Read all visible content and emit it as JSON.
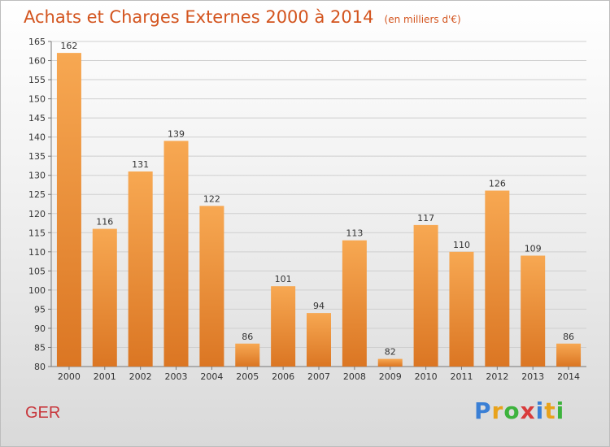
{
  "title": "Achats et Charges Externes 2000 à 2014",
  "unit": "(en milliers d'€)",
  "commune": "GER",
  "brand": {
    "letters": [
      "P",
      "r",
      "o",
      "x",
      "i",
      "t",
      "i"
    ],
    "colors": [
      "#3a7fd5",
      "#e8a21b",
      "#3db33d",
      "#d93b3b",
      "#3a7fd5",
      "#e8a21b",
      "#3db33d"
    ]
  },
  "colors": {
    "accent": "#d3541e",
    "bar_top": "#f7a852",
    "bar_bottom": "#db7623",
    "commune": "#c8383d"
  },
  "chart_data": {
    "type": "bar",
    "categories": [
      "2000",
      "2001",
      "2002",
      "2003",
      "2004",
      "2005",
      "2006",
      "2007",
      "2008",
      "2009",
      "2010",
      "2011",
      "2012",
      "2013",
      "2014"
    ],
    "values": [
      162,
      116,
      131,
      139,
      122,
      86,
      101,
      94,
      113,
      82,
      117,
      110,
      126,
      109,
      86
    ],
    "title": "Achats et Charges Externes 2000 à 2014",
    "ylim": [
      80,
      165
    ],
    "yticks": [
      80,
      85,
      90,
      95,
      100,
      105,
      110,
      115,
      120,
      125,
      130,
      135,
      140,
      145,
      150,
      155,
      160,
      165
    ],
    "grid": true,
    "legend": "none"
  }
}
